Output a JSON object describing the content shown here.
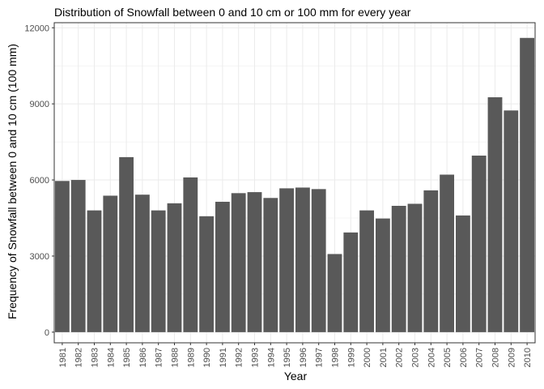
{
  "chart_data": {
    "type": "bar",
    "title": "Distribution of Snowfall between 0 and 10 cm or 100 mm for every year",
    "xlabel": "Year",
    "ylabel": "Frequency of Snowfall between 0 and 10 cm (100 mm)",
    "categories": [
      "1981",
      "1982",
      "1983",
      "1984",
      "1985",
      "1986",
      "1987",
      "1988",
      "1989",
      "1990",
      "1991",
      "1992",
      "1993",
      "1994",
      "1995",
      "1996",
      "1997",
      "1998",
      "1999",
      "2000",
      "2001",
      "2002",
      "2003",
      "2004",
      "2005",
      "2006",
      "2007",
      "2008",
      "2009",
      "2010"
    ],
    "values": [
      5960,
      6000,
      4800,
      5380,
      6900,
      5420,
      4800,
      5080,
      6100,
      4570,
      5140,
      5480,
      5520,
      5290,
      5670,
      5700,
      5640,
      3080,
      3930,
      4800,
      4480,
      4980,
      5060,
      5590,
      6210,
      4600,
      6960,
      9260,
      8740,
      11600
    ],
    "ylim": [
      -420,
      12200
    ],
    "yticks": [
      0,
      3000,
      6000,
      9000,
      12000
    ],
    "grid": true,
    "legend": "none",
    "colors": {
      "bar": "#595959",
      "grid": "#ebebeb",
      "panel_border": "#333333",
      "background": "#ffffff"
    }
  }
}
